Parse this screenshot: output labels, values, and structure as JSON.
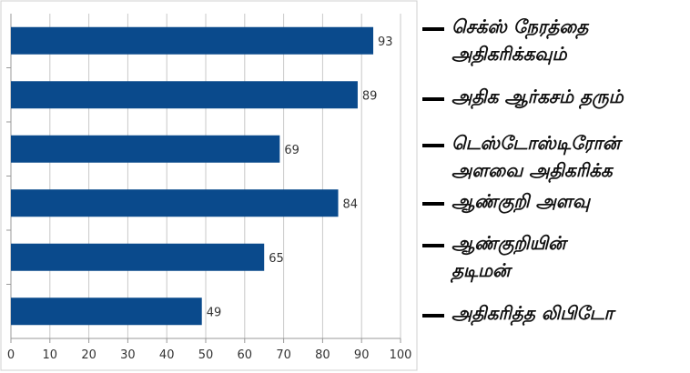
{
  "chart_data": {
    "type": "bar",
    "orientation": "horizontal",
    "categories": [
      "செக்ஸ் நேரத்தை அதிகரிக்கவும்",
      "அதிக ஆர்கசம் தரும்",
      "டெஸ்டோஸ்டிரோன் அளவை அதிகரிக்க",
      "ஆண்குறி அளவு",
      "ஆண்குறியின் தடிமன்",
      "அதிகரித்த லிபிடோ"
    ],
    "values": [
      93,
      89,
      69,
      84,
      65,
      49
    ],
    "xlim": [
      0,
      100
    ],
    "xticks": [
      0,
      10,
      20,
      30,
      40,
      50,
      60,
      70,
      80,
      90,
      100
    ],
    "grid": true,
    "legend_position": "right",
    "colors": {
      "bar": "#0a4a8c",
      "grid": "#c8c8c8",
      "axis": "#999999",
      "text": "#333333"
    }
  },
  "legend": {
    "items": [
      {
        "label": "செக்ஸ் நேரத்தை\nஅதிகரிக்கவும்"
      },
      {
        "label": "அதிக ஆர்கசம் தரும்"
      },
      {
        "label": "டெஸ்டோஸ்டிரோன்\nஅளவை அதிகரிக்க"
      },
      {
        "label": "ஆண்குறி அளவு"
      },
      {
        "label": "ஆண்குறியின்\nதடிமன்"
      },
      {
        "label": "அதிகரித்த லிபிடோ"
      }
    ]
  }
}
